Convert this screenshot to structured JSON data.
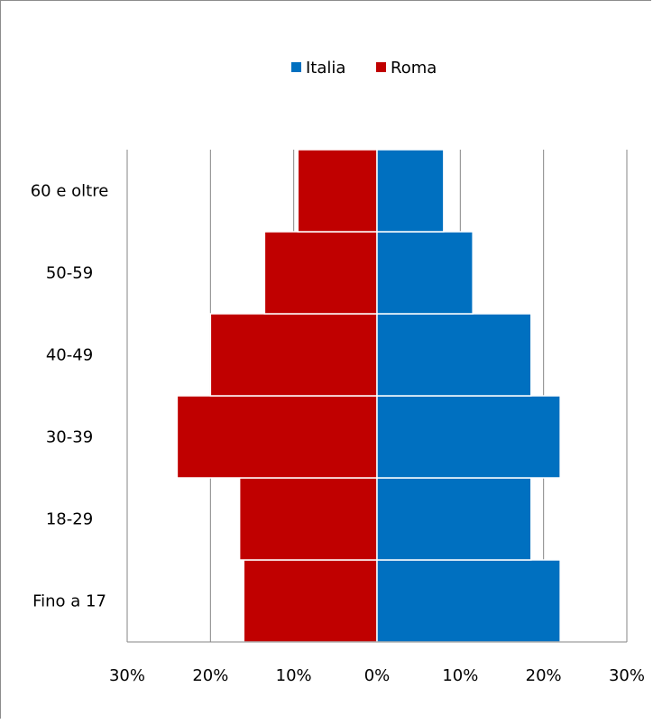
{
  "chart_data": {
    "type": "bar",
    "orientation": "horizontal",
    "layout": "population-pyramid",
    "categories": [
      "Fino a 17",
      "18-29",
      "30-39",
      "40-49",
      "50-59",
      "60 e oltre"
    ],
    "series": [
      {
        "name": "Italia",
        "color": "#0070C0",
        "values": [
          22,
          18.5,
          22,
          18.5,
          11.5,
          8
        ]
      },
      {
        "name": "Roma",
        "color": "#C00000",
        "values": [
          16,
          16.5,
          24,
          20,
          13.5,
          9.5
        ]
      }
    ],
    "xlim": [
      -30,
      30
    ],
    "x_ticks": [
      -30,
      -20,
      -10,
      0,
      10,
      20,
      30
    ],
    "x_tick_labels": [
      "30%",
      "20%",
      "10%",
      "0%",
      "10%",
      "20%",
      "30%"
    ],
    "grid": "vertical",
    "legend": "top-center",
    "title": "",
    "xlabel": "",
    "ylabel": ""
  }
}
